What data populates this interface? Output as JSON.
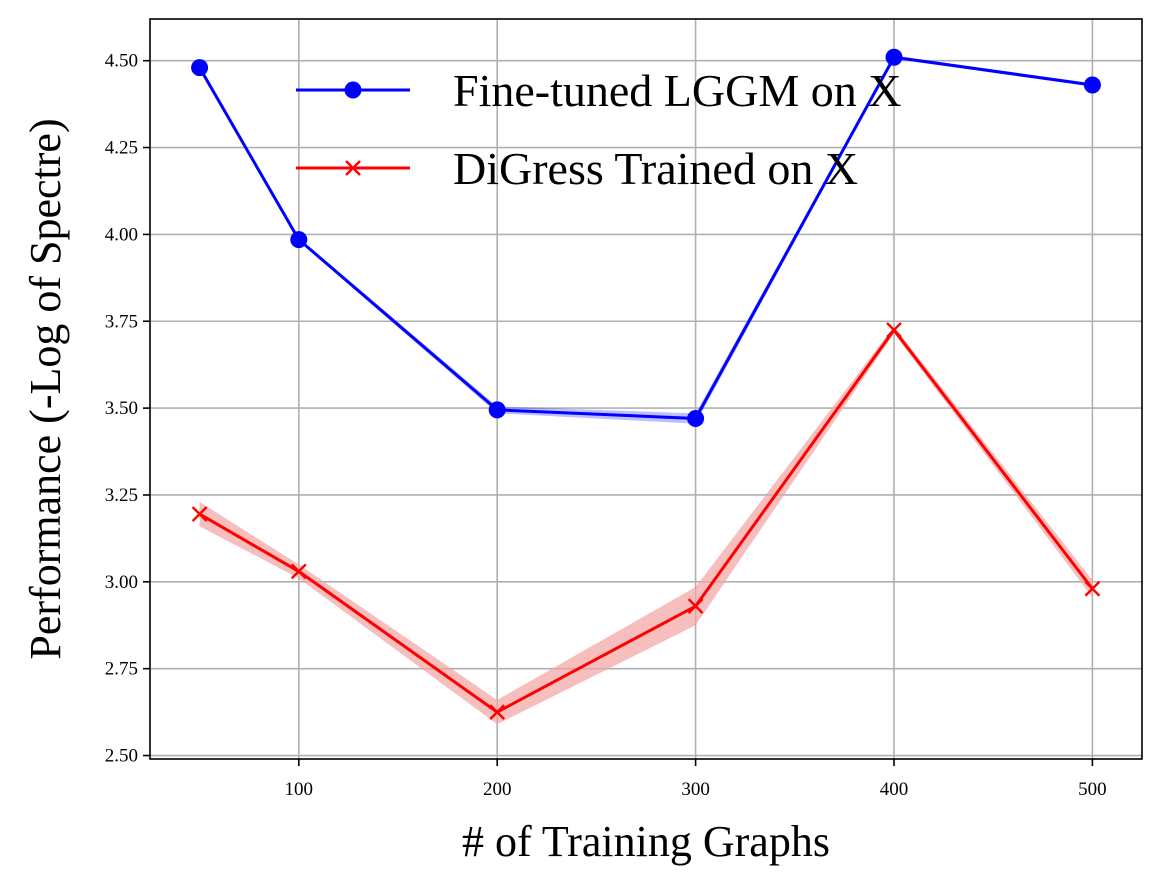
{
  "chart_data": {
    "type": "line",
    "title": "",
    "xlabel": "# of Training Graphs",
    "ylabel": "Performance (-Log of Spectre)",
    "xlim": [
      25,
      525
    ],
    "ylim": [
      2.49,
      4.62
    ],
    "xticks": [
      100,
      200,
      300,
      400,
      500
    ],
    "yticks": [
      2.5,
      2.75,
      3.0,
      3.25,
      3.5,
      3.75,
      4.0,
      4.25,
      4.5
    ],
    "xtick_labels": [
      "100",
      "200",
      "300",
      "400",
      "500"
    ],
    "ytick_labels": [
      "2.50",
      "2.75",
      "3.00",
      "3.25",
      "3.50",
      "3.75",
      "4.00",
      "4.25",
      "4.50"
    ],
    "grid": true,
    "legend_position": "top-right",
    "x": [
      50,
      100,
      200,
      300,
      400,
      500
    ],
    "series": [
      {
        "name": "Fine-tuned LGGM on X",
        "color": "#0000ff",
        "marker": "circle",
        "values": [
          4.48,
          3.985,
          3.495,
          3.47,
          4.51,
          4.43
        ],
        "band_low": [
          4.475,
          3.98,
          3.485,
          3.455,
          4.505,
          4.425
        ],
        "band_high": [
          4.485,
          3.99,
          3.505,
          3.485,
          4.515,
          4.435
        ]
      },
      {
        "name": "DiGress Trained on X",
        "color": "#ff0000",
        "band_color": "#f4a3a3",
        "marker": "x",
        "values": [
          3.195,
          3.03,
          2.625,
          2.93,
          3.725,
          2.98
        ],
        "band_low": [
          3.16,
          3.01,
          2.59,
          2.875,
          3.715,
          2.955
        ],
        "band_high": [
          3.23,
          3.05,
          2.66,
          2.985,
          3.735,
          3.005
        ]
      }
    ]
  }
}
